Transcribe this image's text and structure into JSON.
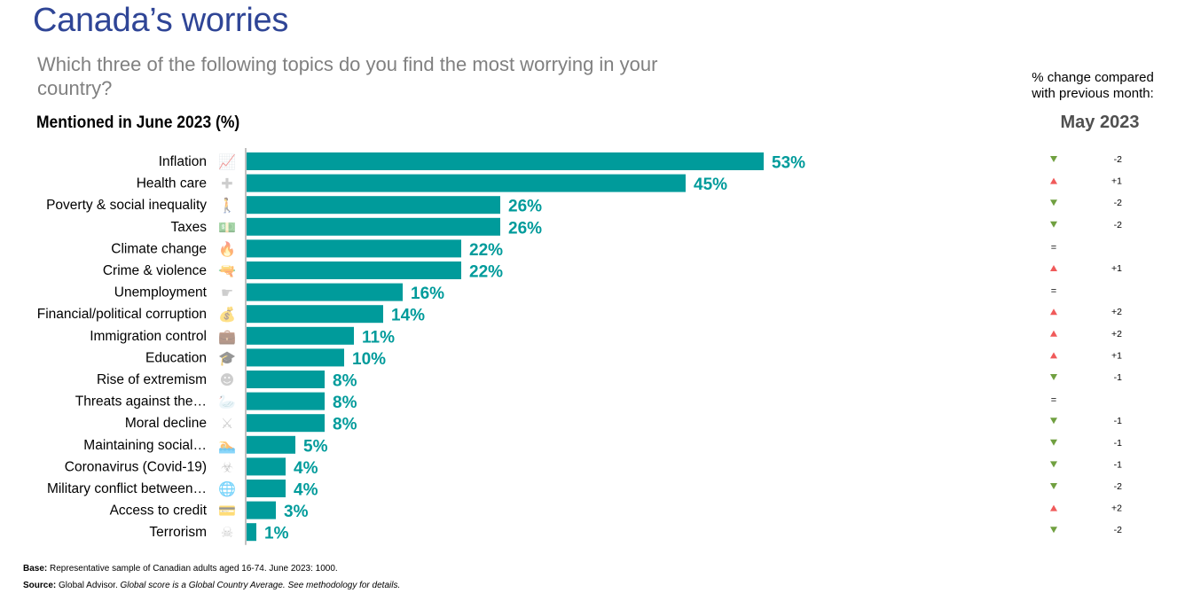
{
  "header": {
    "title": "Canada’s worries",
    "question": "Which three of the following topics do you find the most worrying in your country?",
    "subtitle": "Mentioned in June 2023 (%)"
  },
  "change_panel": {
    "heading_line1": "% change compared",
    "heading_line2": "with previous month:",
    "month": "May 2023"
  },
  "colors": {
    "bar": "#009b9b",
    "label": "#009b9b",
    "up": "#f05a5a",
    "down": "#70a040",
    "icon": "#a6a6a6",
    "axis": "#808080"
  },
  "chart_data": {
    "type": "bar",
    "orientation": "horizontal",
    "title": "Mentioned in June 2023 (%)",
    "xlabel": "",
    "ylabel": "",
    "xlim": [
      0,
      60
    ],
    "grid": false,
    "categories": [
      "Inflation",
      "Health care",
      "Poverty & social inequality",
      "Taxes",
      "Climate change",
      "Crime & violence",
      "Unemployment",
      "Financial/political corruption",
      "Immigration control",
      "Education",
      "Rise of extremism",
      "Threats against the…",
      "Moral decline",
      "Maintaining social…",
      "Coronavirus (Covid-19)",
      "Military conflict between…",
      "Access to credit",
      "Terrorism"
    ],
    "icons": [
      "rising-chart-icon",
      "nurse-cap-icon",
      "person-icon",
      "money-icon",
      "burning-globe-icon",
      "revolver-icon",
      "pointing-hand-icon",
      "money-bag-icon",
      "suitcase-icon",
      "graduation-cap-icon",
      "balaclava-icon",
      "swan-icon",
      "fighting-figures-icon",
      "sinking-person-icon",
      "biohazard-icon",
      "globe-conflict-icon",
      "credit-card-icon",
      "skull-crossbones-icon"
    ],
    "values": [
      53,
      45,
      26,
      26,
      22,
      22,
      16,
      14,
      11,
      10,
      8,
      8,
      8,
      5,
      4,
      4,
      3,
      1
    ],
    "value_labels": [
      "53%",
      "45%",
      "26%",
      "26%",
      "22%",
      "22%",
      "16%",
      "14%",
      "11%",
      "10%",
      "8%",
      "8%",
      "8%",
      "5%",
      "4%",
      "4%",
      "3%",
      "1%"
    ],
    "change_direction": [
      "down",
      "up",
      "down",
      "down",
      "same",
      "up",
      "same",
      "up",
      "up",
      "up",
      "down",
      "same",
      "down",
      "down",
      "down",
      "down",
      "up",
      "down"
    ],
    "change_labels": [
      "-2",
      "+1",
      "-2",
      "-2",
      "",
      "+1",
      "",
      "+2",
      "+2",
      "+1",
      "-1",
      "",
      "-1",
      "-1",
      "-1",
      "-2",
      "+2",
      "-2"
    ],
    "same_symbol": "="
  },
  "footer": {
    "base_label": "Base:",
    "base_text": " Representative sample of Canadian adults aged 16-74. June 2023: 1000.",
    "source_label": "Source:",
    "source_text": " Global Advisor. ",
    "source_note": "Global score is a Global Country Average. See methodology for details."
  }
}
